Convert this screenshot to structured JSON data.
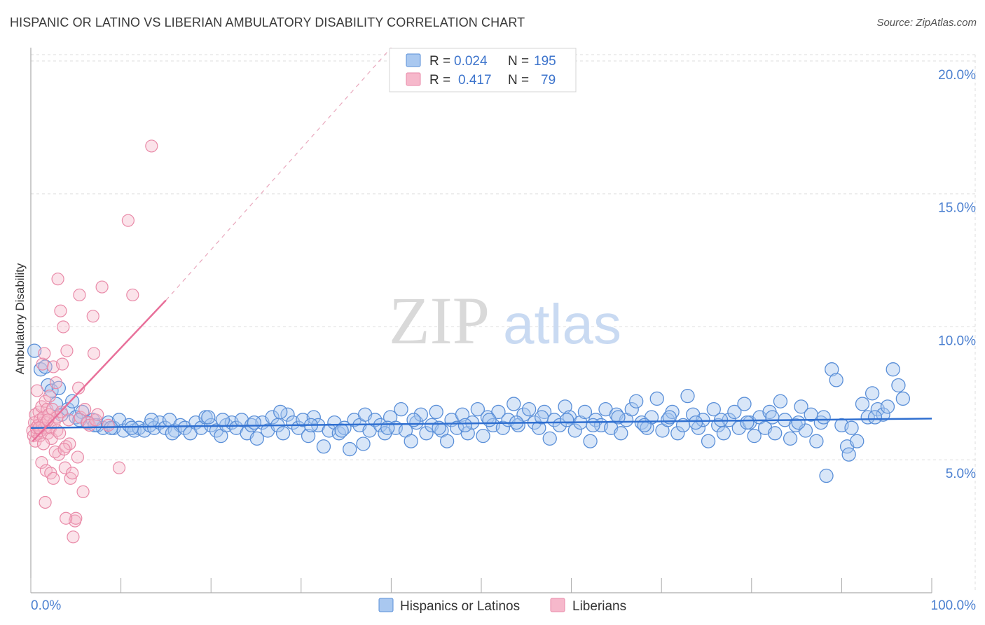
{
  "title": "HISPANIC OR LATINO VS LIBERIAN AMBULATORY DISABILITY CORRELATION CHART",
  "source": "Source: ZipAtlas.com",
  "watermark": {
    "zip": "ZIP",
    "atlas": "atlas"
  },
  "colors": {
    "blue_fill": "#a9c8f0",
    "blue_stroke": "#5a8fd8",
    "blue_line": "#2f6fd0",
    "pink_fill": "#f6b8cb",
    "pink_stroke": "#e98aa8",
    "pink_line": "#e8709a",
    "grid": "#dddddd",
    "tick_text": "#4a7fd0"
  },
  "chart_data": {
    "type": "scatter",
    "title": "HISPANIC OR LATINO VS LIBERIAN AMBULATORY DISABILITY CORRELATION CHART",
    "xlabel": "",
    "ylabel": "Ambulatory Disability",
    "xlim": [
      0,
      100
    ],
    "ylim": [
      0,
      20.5
    ],
    "x_tick_labels": [
      "0.0%",
      "100.0%"
    ],
    "y_ticks": [
      5,
      10,
      15,
      20
    ],
    "y_tick_labels": [
      "5.0%",
      "10.0%",
      "15.0%",
      "20.0%"
    ],
    "legend": {
      "placement": "top-center",
      "entries": [
        {
          "series": "Hispanics or Latinos",
          "r_label": "R =",
          "r_value": "0.024",
          "n_label": "N =",
          "n_value": "195"
        },
        {
          "series": "Liberians",
          "r_label": "R =",
          "r_value": "0.417",
          "n_label": "N =",
          "n_value": "79"
        }
      ]
    },
    "bottom_legend": [
      "Hispanics or Latinos",
      "Liberians"
    ],
    "series": [
      {
        "name": "Hispanics or Latinos",
        "trend": {
          "x": [
            0,
            100
          ],
          "y": [
            6.2,
            6.55
          ],
          "dashed_extension": false
        },
        "points": [
          [
            0.4,
            9.1
          ],
          [
            1.1,
            8.4
          ],
          [
            1.9,
            7.8
          ],
          [
            2.3,
            7.6
          ],
          [
            2.8,
            7.1
          ],
          [
            3.4,
            6.7
          ],
          [
            4.1,
            6.9
          ],
          [
            4.6,
            7.2
          ],
          [
            5.0,
            6.6
          ],
          [
            5.7,
            6.8
          ],
          [
            6.3,
            6.4
          ],
          [
            6.9,
            6.5
          ],
          [
            7.4,
            6.3
          ],
          [
            8.0,
            6.2
          ],
          [
            8.6,
            6.4
          ],
          [
            9.2,
            6.2
          ],
          [
            9.8,
            6.5
          ],
          [
            10.3,
            6.1
          ],
          [
            10.9,
            6.3
          ],
          [
            11.5,
            6.1
          ],
          [
            12.0,
            6.2
          ],
          [
            12.6,
            6.1
          ],
          [
            13.2,
            6.3
          ],
          [
            13.7,
            6.2
          ],
          [
            14.3,
            6.4
          ],
          [
            14.9,
            6.2
          ],
          [
            15.4,
            6.5
          ],
          [
            16.0,
            6.1
          ],
          [
            16.6,
            6.3
          ],
          [
            17.1,
            6.2
          ],
          [
            17.7,
            6.0
          ],
          [
            18.3,
            6.4
          ],
          [
            18.9,
            6.2
          ],
          [
            19.4,
            6.6
          ],
          [
            20.0,
            6.3
          ],
          [
            20.6,
            6.1
          ],
          [
            21.1,
            5.9
          ],
          [
            21.7,
            6.3
          ],
          [
            22.3,
            6.4
          ],
          [
            22.8,
            6.2
          ],
          [
            23.4,
            6.5
          ],
          [
            24.0,
            6.0
          ],
          [
            24.5,
            6.3
          ],
          [
            25.1,
            5.8
          ],
          [
            25.7,
            6.4
          ],
          [
            26.3,
            6.1
          ],
          [
            26.8,
            6.6
          ],
          [
            27.4,
            6.3
          ],
          [
            28.0,
            6.0
          ],
          [
            28.5,
            6.7
          ],
          [
            29.1,
            6.4
          ],
          [
            29.7,
            6.2
          ],
          [
            30.2,
            6.5
          ],
          [
            30.8,
            5.9
          ],
          [
            31.4,
            6.6
          ],
          [
            31.9,
            6.3
          ],
          [
            32.5,
            5.5
          ],
          [
            33.1,
            6.1
          ],
          [
            33.7,
            6.4
          ],
          [
            34.2,
            6.0
          ],
          [
            34.8,
            6.2
          ],
          [
            35.4,
            5.4
          ],
          [
            35.9,
            6.5
          ],
          [
            36.5,
            6.3
          ],
          [
            37.1,
            6.7
          ],
          [
            37.6,
            6.1
          ],
          [
            38.2,
            6.5
          ],
          [
            38.8,
            6.3
          ],
          [
            39.3,
            6.0
          ],
          [
            39.9,
            6.6
          ],
          [
            40.5,
            6.2
          ],
          [
            41.1,
            6.9
          ],
          [
            41.6,
            6.1
          ],
          [
            42.2,
            5.7
          ],
          [
            42.8,
            6.4
          ],
          [
            43.3,
            6.7
          ],
          [
            43.9,
            6.0
          ],
          [
            44.5,
            6.3
          ],
          [
            45.0,
            6.8
          ],
          [
            45.6,
            6.1
          ],
          [
            46.2,
            5.7
          ],
          [
            46.7,
            6.5
          ],
          [
            47.3,
            6.2
          ],
          [
            47.9,
            6.7
          ],
          [
            48.5,
            6.0
          ],
          [
            49.0,
            6.4
          ],
          [
            49.6,
            6.9
          ],
          [
            50.2,
            5.9
          ],
          [
            50.7,
            6.6
          ],
          [
            51.3,
            6.3
          ],
          [
            51.9,
            6.8
          ],
          [
            52.4,
            6.2
          ],
          [
            53.0,
            6.5
          ],
          [
            53.6,
            7.1
          ],
          [
            54.1,
            6.3
          ],
          [
            54.7,
            6.7
          ],
          [
            55.3,
            6.9
          ],
          [
            55.9,
            6.4
          ],
          [
            56.4,
            6.2
          ],
          [
            57.0,
            6.8
          ],
          [
            57.6,
            5.8
          ],
          [
            58.1,
            6.5
          ],
          [
            58.7,
            6.3
          ],
          [
            59.3,
            7.0
          ],
          [
            59.8,
            6.6
          ],
          [
            60.4,
            6.1
          ],
          [
            61.0,
            6.4
          ],
          [
            61.5,
            6.8
          ],
          [
            62.1,
            5.7
          ],
          [
            62.7,
            6.5
          ],
          [
            63.3,
            6.3
          ],
          [
            63.8,
            6.9
          ],
          [
            64.4,
            6.2
          ],
          [
            65.0,
            6.7
          ],
          [
            65.5,
            6.0
          ],
          [
            66.1,
            6.5
          ],
          [
            66.7,
            6.9
          ],
          [
            67.2,
            7.2
          ],
          [
            67.8,
            6.4
          ],
          [
            68.4,
            6.2
          ],
          [
            68.9,
            6.6
          ],
          [
            69.5,
            7.3
          ],
          [
            70.1,
            6.1
          ],
          [
            70.7,
            6.5
          ],
          [
            71.2,
            6.8
          ],
          [
            71.8,
            6.0
          ],
          [
            72.4,
            6.3
          ],
          [
            72.9,
            7.4
          ],
          [
            73.5,
            6.7
          ],
          [
            74.1,
            6.2
          ],
          [
            74.6,
            6.5
          ],
          [
            75.2,
            5.7
          ],
          [
            75.8,
            6.9
          ],
          [
            76.3,
            6.3
          ],
          [
            76.9,
            6.0
          ],
          [
            77.5,
            6.5
          ],
          [
            78.1,
            6.8
          ],
          [
            78.6,
            6.2
          ],
          [
            79.2,
            7.1
          ],
          [
            79.8,
            6.4
          ],
          [
            80.3,
            5.9
          ],
          [
            80.9,
            6.6
          ],
          [
            81.5,
            6.2
          ],
          [
            82.0,
            6.8
          ],
          [
            82.6,
            6.0
          ],
          [
            83.2,
            7.2
          ],
          [
            83.7,
            6.5
          ],
          [
            84.3,
            5.8
          ],
          [
            84.9,
            6.3
          ],
          [
            85.5,
            7.0
          ],
          [
            86.0,
            6.1
          ],
          [
            86.6,
            6.7
          ],
          [
            87.2,
            5.7
          ],
          [
            87.7,
            6.4
          ],
          [
            88.3,
            4.4
          ],
          [
            88.9,
            8.4
          ],
          [
            89.4,
            8.0
          ],
          [
            90.0,
            6.3
          ],
          [
            90.6,
            5.5
          ],
          [
            91.1,
            6.2
          ],
          [
            91.7,
            5.7
          ],
          [
            92.3,
            7.1
          ],
          [
            92.9,
            6.6
          ],
          [
            93.4,
            7.5
          ],
          [
            94.0,
            6.9
          ],
          [
            94.6,
            6.7
          ],
          [
            95.1,
            7.0
          ],
          [
            95.7,
            8.4
          ],
          [
            96.3,
            7.8
          ],
          [
            96.8,
            7.3
          ],
          [
            1.6,
            8.5
          ],
          [
            3.1,
            7.7
          ],
          [
            5.4,
            6.5
          ],
          [
            7.1,
            6.3
          ],
          [
            8.9,
            6.2
          ],
          [
            11.2,
            6.2
          ],
          [
            13.4,
            6.5
          ],
          [
            15.7,
            6.0
          ],
          [
            19.7,
            6.6
          ],
          [
            21.3,
            6.5
          ],
          [
            24.8,
            6.4
          ],
          [
            27.7,
            6.8
          ],
          [
            31.1,
            6.3
          ],
          [
            34.5,
            6.1
          ],
          [
            36.9,
            5.6
          ],
          [
            39.6,
            6.2
          ],
          [
            42.5,
            6.5
          ],
          [
            45.3,
            6.2
          ],
          [
            48.2,
            6.3
          ],
          [
            50.9,
            6.5
          ],
          [
            53.9,
            6.4
          ],
          [
            56.7,
            6.6
          ],
          [
            59.5,
            6.5
          ],
          [
            62.4,
            6.3
          ],
          [
            65.2,
            6.6
          ],
          [
            68.1,
            6.3
          ],
          [
            70.9,
            6.6
          ],
          [
            73.8,
            6.4
          ],
          [
            76.6,
            6.5
          ],
          [
            79.5,
            6.4
          ],
          [
            82.3,
            6.6
          ],
          [
            85.2,
            6.4
          ],
          [
            88.0,
            6.6
          ],
          [
            90.8,
            5.2
          ],
          [
            93.7,
            6.6
          ]
        ]
      },
      {
        "name": "Liberians",
        "trend": {
          "x": [
            0.2,
            15
          ],
          "y": [
            5.7,
            11.0
          ],
          "dashed_extension": true,
          "dashed_to": [
            40,
            20.5
          ]
        },
        "points": [
          [
            0.2,
            6.1
          ],
          [
            0.3,
            5.9
          ],
          [
            0.4,
            6.4
          ],
          [
            0.5,
            5.7
          ],
          [
            0.5,
            6.7
          ],
          [
            0.6,
            6.2
          ],
          [
            0.7,
            6.0
          ],
          [
            0.7,
            7.6
          ],
          [
            0.8,
            6.3
          ],
          [
            0.9,
            6.8
          ],
          [
            1.0,
            5.9
          ],
          [
            1.0,
            6.5
          ],
          [
            1.1,
            6.1
          ],
          [
            1.2,
            7.0
          ],
          [
            1.3,
            6.3
          ],
          [
            1.3,
            8.6
          ],
          [
            1.4,
            6.6
          ],
          [
            1.5,
            6.2
          ],
          [
            1.5,
            9.0
          ],
          [
            1.6,
            7.2
          ],
          [
            1.7,
            6.4
          ],
          [
            1.8,
            6.9
          ],
          [
            1.9,
            6.0
          ],
          [
            2.0,
            6.7
          ],
          [
            2.1,
            7.4
          ],
          [
            2.2,
            6.2
          ],
          [
            2.3,
            5.8
          ],
          [
            2.4,
            6.9
          ],
          [
            2.5,
            8.5
          ],
          [
            2.6,
            6.4
          ],
          [
            2.8,
            7.9
          ],
          [
            2.9,
            6.6
          ],
          [
            3.0,
            11.8
          ],
          [
            3.1,
            5.2
          ],
          [
            3.3,
            10.6
          ],
          [
            3.4,
            6.8
          ],
          [
            3.5,
            8.6
          ],
          [
            3.6,
            10.0
          ],
          [
            3.8,
            4.7
          ],
          [
            3.9,
            5.5
          ],
          [
            4.0,
            9.1
          ],
          [
            4.2,
            6.5
          ],
          [
            4.3,
            5.6
          ],
          [
            4.4,
            4.3
          ],
          [
            4.6,
            4.5
          ],
          [
            4.7,
            2.1
          ],
          [
            4.9,
            2.7
          ],
          [
            5.0,
            2.8
          ],
          [
            5.2,
            5.1
          ],
          [
            5.3,
            7.7
          ],
          [
            5.4,
            11.2
          ],
          [
            5.5,
            6.6
          ],
          [
            5.8,
            3.8
          ],
          [
            6.0,
            6.9
          ],
          [
            6.3,
            6.4
          ],
          [
            6.5,
            6.3
          ],
          [
            6.9,
            10.4
          ],
          [
            7.0,
            9.0
          ],
          [
            7.2,
            6.5
          ],
          [
            7.4,
            6.7
          ],
          [
            7.9,
            11.5
          ],
          [
            8.6,
            6.3
          ],
          [
            9.8,
            4.7
          ],
          [
            10.8,
            14.0
          ],
          [
            11.3,
            11.2
          ],
          [
            13.4,
            16.8
          ],
          [
            1.2,
            4.9
          ],
          [
            1.7,
            4.6
          ],
          [
            2.2,
            4.5
          ],
          [
            2.5,
            4.3
          ],
          [
            2.9,
            6.1
          ],
          [
            1.4,
            5.6
          ],
          [
            3.2,
            6.0
          ],
          [
            1.6,
            3.4
          ],
          [
            3.9,
            2.8
          ],
          [
            0.9,
            6.2
          ],
          [
            2.7,
            5.3
          ],
          [
            1.9,
            6.5
          ],
          [
            3.7,
            5.4
          ]
        ]
      }
    ]
  }
}
